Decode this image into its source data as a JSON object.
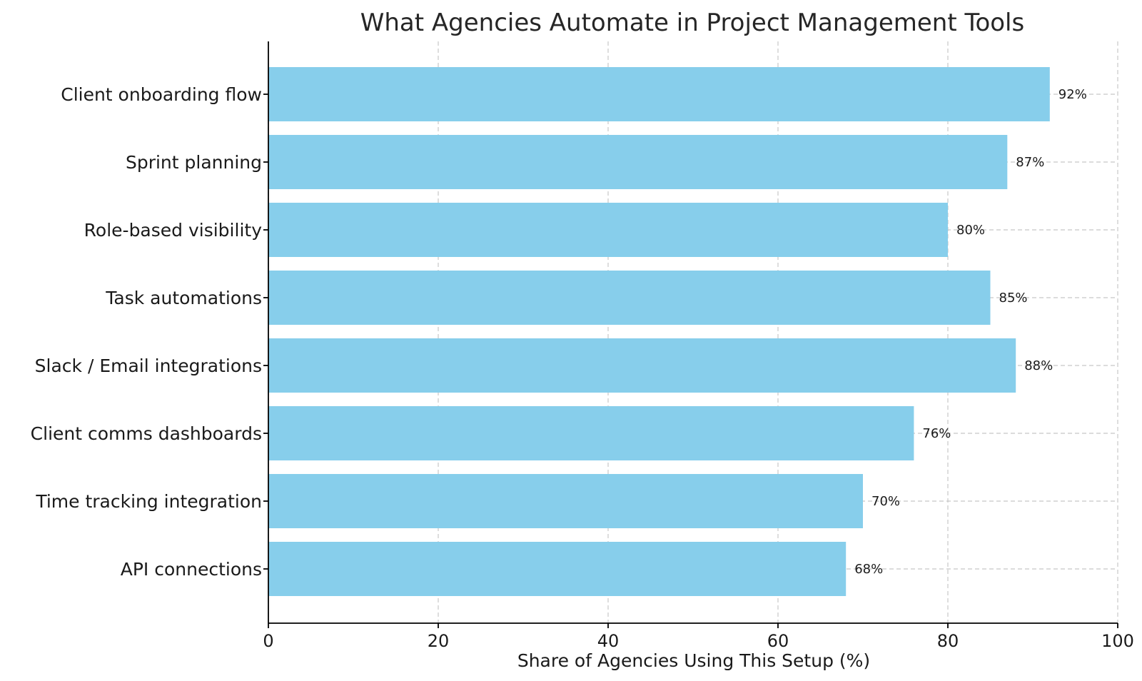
{
  "chart_data": {
    "type": "bar",
    "orientation": "horizontal",
    "title": "What Agencies Automate in Project Management Tools",
    "xlabel": "Share of Agencies Using This Setup (%)",
    "ylabel": "",
    "xlim": [
      0,
      100
    ],
    "xticks": [
      0,
      20,
      40,
      60,
      80,
      100
    ],
    "grid": true,
    "bar_color": "#87ceeb",
    "categories": [
      "Client onboarding flow",
      "Sprint planning",
      "Role-based visibility",
      "Task automations",
      "Slack / Email integrations",
      "Client comms dashboards",
      "Time tracking integration",
      "API connections"
    ],
    "values": [
      92,
      87,
      80,
      85,
      88,
      76,
      70,
      68
    ],
    "data_labels": [
      "92%",
      "87%",
      "80%",
      "85%",
      "88%",
      "76%",
      "70%",
      "68%"
    ]
  }
}
